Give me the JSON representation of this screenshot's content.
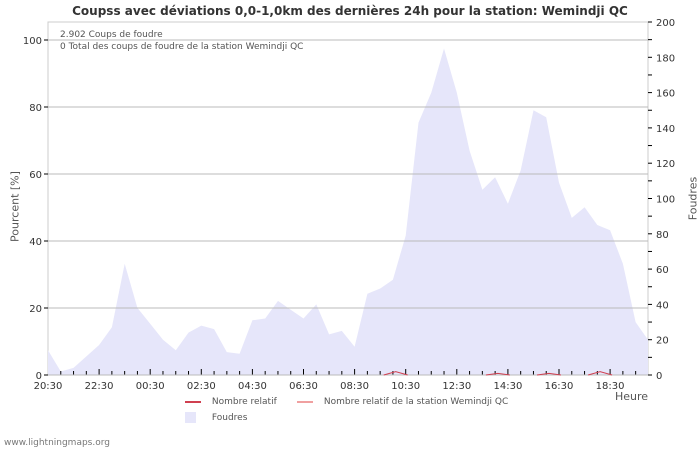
{
  "chart_data": {
    "type": "area",
    "title": "Coupss avec déviations 0,0-1,0km des dernières 24h pour la station: Wemindji QC",
    "xlabel": "Heure",
    "ylabel_left": "Pourcent   [%]",
    "ylabel_right": "Foudres",
    "ylim_left": [
      0,
      100
    ],
    "ylim_right": [
      0,
      200
    ],
    "left_ticks": [
      "0",
      "20",
      "40",
      "60",
      "80",
      "100"
    ],
    "right_ticks": [
      "0",
      "20",
      "40",
      "60",
      "80",
      "100",
      "120",
      "140",
      "160",
      "180",
      "200"
    ],
    "x_tick_labels": [
      "20:30",
      "22:30",
      "00:30",
      "02:30",
      "04:30",
      "06:30",
      "08:30",
      "10:30",
      "12:30",
      "14:30",
      "16:30",
      "18:30"
    ],
    "grid": true,
    "legend_position": "bottom",
    "annotations": [
      "2.902  Coups de foudre",
      "0 Total des coups de foudre de la station Wemindji QC"
    ],
    "series": [
      {
        "name": "Foudres",
        "axis": "right",
        "color": "#e6e6fa",
        "x": [
          "20:30",
          "21:00",
          "21:30",
          "22:30",
          "23:00",
          "23:30",
          "00:00",
          "00:30",
          "01:00",
          "01:30",
          "02:00",
          "02:30",
          "03:00",
          "03:30",
          "04:00",
          "04:30",
          "05:00",
          "05:30",
          "06:00",
          "06:30",
          "07:00",
          "07:30",
          "08:00",
          "08:30",
          "09:00",
          "09:30",
          "10:00",
          "10:30",
          "11:00",
          "11:30",
          "12:00",
          "12:30",
          "13:00",
          "13:30",
          "14:00",
          "14:30",
          "15:00",
          "15:30",
          "16:00",
          "16:30",
          "17:00",
          "17:30",
          "18:00",
          "18:30",
          "19:00",
          "19:30",
          "20:00"
        ],
        "values": [
          14,
          2,
          4,
          17,
          27,
          63,
          38,
          29,
          20,
          14,
          24,
          28,
          26,
          13,
          12,
          31,
          32,
          42,
          37,
          32,
          40,
          23,
          25,
          16,
          46,
          49,
          54,
          79,
          143,
          160,
          185,
          160,
          127,
          105,
          112,
          97,
          116,
          150,
          146,
          109,
          89,
          95,
          85,
          82,
          63,
          30,
          20
        ]
      },
      {
        "name": "Nombre relatif",
        "axis": "left",
        "color": "#d04050",
        "peaks": [
          {
            "x": "10:30",
            "value": 1
          },
          {
            "x": "14:30",
            "value": 0.5
          },
          {
            "x": "16:30",
            "value": 0.5
          },
          {
            "x": "18:30",
            "value": 1
          }
        ]
      },
      {
        "name": "Nombre relatif de la station Wemindji QC",
        "axis": "left",
        "color": "#f0a0a0",
        "values": []
      }
    ]
  },
  "legend": {
    "items": [
      {
        "label": "Nombre relatif",
        "color": "#d04050"
      },
      {
        "label": "Nombre relatif de la station Wemindji QC",
        "color": "#f0a0a0"
      },
      {
        "label": "Foudres",
        "color": "#e6e6fa"
      }
    ]
  },
  "footer": {
    "text": "www.lightningmaps.org"
  }
}
